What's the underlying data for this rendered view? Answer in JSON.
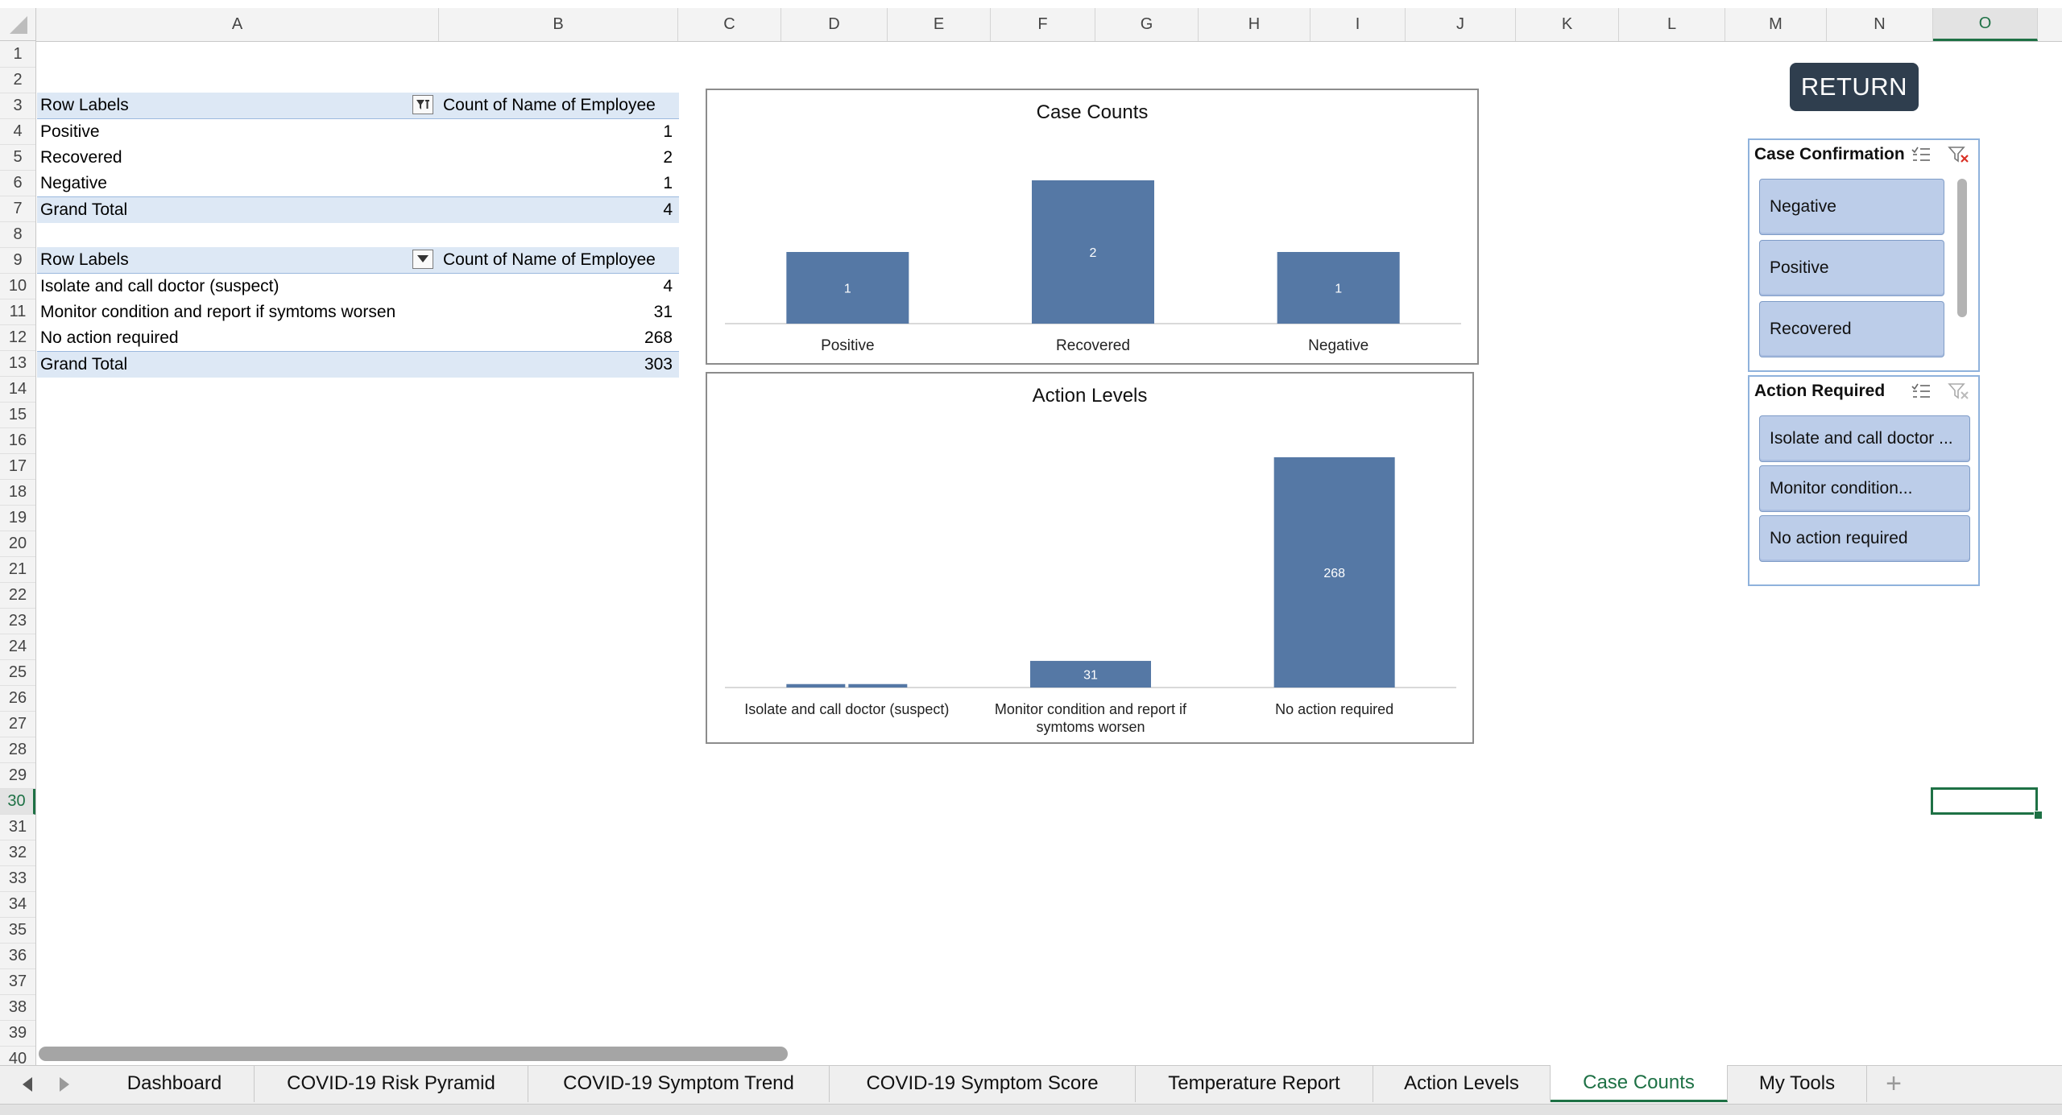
{
  "columns": [
    "A",
    "B",
    "C",
    "D",
    "E",
    "F",
    "G",
    "H",
    "I",
    "J",
    "K",
    "L",
    "M",
    "N",
    "O"
  ],
  "active_column": "O",
  "rows": [
    "1",
    "2",
    "3",
    "4",
    "5",
    "6",
    "7",
    "8",
    "9",
    "10",
    "11",
    "12",
    "13",
    "14",
    "15",
    "16",
    "17",
    "18",
    "19",
    "20",
    "21",
    "22",
    "23",
    "24",
    "25",
    "26",
    "27",
    "28",
    "29",
    "30",
    "31",
    "32",
    "33",
    "34",
    "35",
    "36",
    "37",
    "38",
    "39",
    "40"
  ],
  "active_row": "30",
  "pivot1": {
    "header_label": "Row Labels",
    "header_value": "Count of Name of Employee",
    "rows": [
      {
        "label": "Positive",
        "value": "1"
      },
      {
        "label": "Recovered",
        "value": "2"
      },
      {
        "label": "Negative",
        "value": "1"
      }
    ],
    "total_label": "Grand Total",
    "total_value": "4"
  },
  "pivot2": {
    "header_label": "Row Labels",
    "header_value": "Count of Name of Employee",
    "rows": [
      {
        "label": "Isolate and call doctor (suspect)",
        "value": "4"
      },
      {
        "label": "Monitor condition and report if symtoms worsen",
        "value": "31"
      },
      {
        "label": "No action required",
        "value": "268"
      }
    ],
    "total_label": "Grand Total",
    "total_value": "303"
  },
  "chart_data": [
    {
      "type": "bar",
      "title": "Case Counts",
      "categories": [
        "Positive",
        "Recovered",
        "Negative"
      ],
      "values": [
        1,
        2,
        1
      ],
      "data_labels": [
        "1",
        "2",
        "1"
      ],
      "ylim": [
        0,
        2
      ],
      "bar_color": "#5578a5",
      "grid": false,
      "legend": "none"
    },
    {
      "type": "bar",
      "title": "Action Levels",
      "categories": [
        "Isolate and call doctor (suspect)",
        "Monitor condition and report if symtoms worsen",
        "No action required"
      ],
      "category_lines": [
        [
          "Isolate and call doctor (suspect)"
        ],
        [
          "Monitor condition and report if",
          "symtoms worsen"
        ],
        [
          "No action required"
        ]
      ],
      "series": [
        {
          "values": [
            4,
            0,
            0
          ]
        },
        {
          "values": [
            4,
            31,
            268
          ]
        }
      ],
      "data_labels": [
        "",
        "31",
        "268"
      ],
      "ylim": [
        0,
        268
      ],
      "bar_color": "#5578a5",
      "grid": false,
      "legend": "none"
    }
  ],
  "return_button": {
    "label": "RETURN"
  },
  "slicer_case": {
    "title": "Case Confirmation",
    "items": [
      "Negative",
      "Positive",
      "Recovered"
    ]
  },
  "slicer_action": {
    "title": "Action Required",
    "items": [
      "Isolate and call doctor ...",
      "Monitor condition...",
      "No action required"
    ]
  },
  "tabs": [
    {
      "label": "Dashboard",
      "active": false
    },
    {
      "label": "COVID-19 Risk Pyramid",
      "active": false
    },
    {
      "label": "COVID-19 Symptom Trend",
      "active": false
    },
    {
      "label": "COVID-19 Symptom Score",
      "active": false
    },
    {
      "label": "Temperature Report",
      "active": false
    },
    {
      "label": "Action Levels",
      "active": false
    },
    {
      "label": "Case Counts",
      "active": true
    },
    {
      "label": "My Tools",
      "active": false
    }
  ],
  "add_tab": "+",
  "colors": {
    "accent": "#1e7145",
    "pivot_header": "#dde8f5",
    "slicer_item": "#bccde9",
    "button": "#2f3e4e"
  }
}
